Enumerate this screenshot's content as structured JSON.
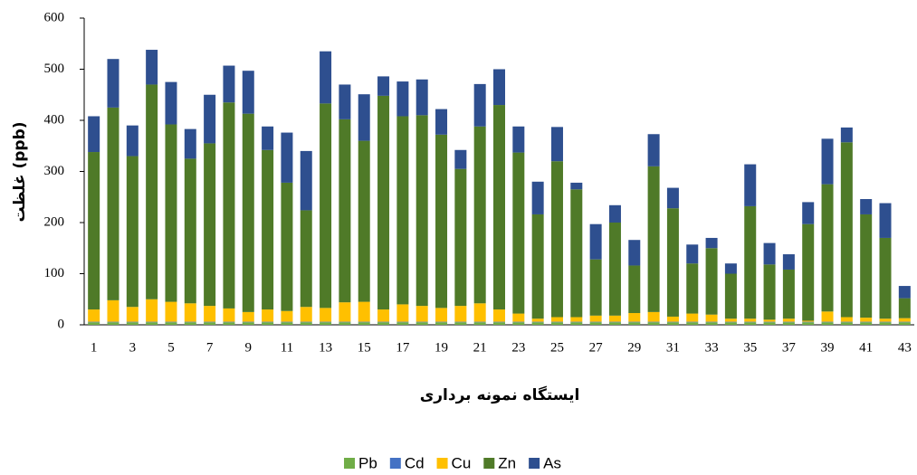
{
  "chart_data": {
    "type": "stacked-bar",
    "y_label": "غلظت (ppb)",
    "x_label": "ایستگاه نمونه برداری",
    "categories": [
      "1",
      null,
      "3",
      null,
      "5",
      null,
      "7",
      null,
      "9",
      null,
      "11",
      null,
      "13",
      null,
      "15",
      null,
      "17",
      null,
      "19",
      null,
      "21",
      null,
      "23",
      null,
      "25",
      null,
      "27",
      null,
      "29",
      null,
      "31",
      null,
      "33",
      null,
      "35",
      null,
      "37",
      null,
      "39",
      null,
      "41",
      null,
      "43"
    ],
    "ylim": [
      0,
      600
    ],
    "yticks": [
      0,
      100,
      200,
      300,
      400,
      500,
      600
    ],
    "series": [
      {
        "name": "Pb",
        "color": "#70ad47",
        "values": [
          5,
          5,
          5,
          5,
          5,
          5,
          5,
          5,
          5,
          5,
          5,
          5,
          5,
          5,
          5,
          5,
          5,
          5,
          5,
          5,
          5,
          5,
          5,
          5,
          5,
          5,
          5,
          5,
          5,
          5,
          5,
          5,
          5,
          5,
          5,
          5,
          5,
          5,
          5,
          5,
          5,
          5,
          5
        ]
      },
      {
        "name": "Cd",
        "color": "#4472c4",
        "values": [
          1,
          1,
          1,
          1,
          1,
          1,
          1,
          1,
          1,
          1,
          1,
          1,
          1,
          1,
          1,
          1,
          1,
          1,
          1,
          1,
          1,
          1,
          1,
          1,
          1,
          1,
          1,
          1,
          1,
          1,
          1,
          1,
          1,
          1,
          1,
          1,
          1,
          1,
          1,
          1,
          1,
          1,
          1
        ]
      },
      {
        "name": "Cu",
        "color": "#ffc000",
        "values": [
          24,
          42,
          29,
          44,
          39,
          36,
          31,
          26,
          19,
          24,
          21,
          29,
          27,
          38,
          39,
          24,
          34,
          31,
          27,
          31,
          36,
          24,
          16,
          6,
          9,
          9,
          12,
          12,
          17,
          19,
          10,
          16,
          14,
          6,
          6,
          4,
          6,
          2,
          20,
          9,
          8,
          6,
          7
        ]
      },
      {
        "name": "Zn",
        "color": "#4f7a28",
        "values": [
          308,
          377,
          295,
          420,
          347,
          283,
          318,
          403,
          388,
          312,
          251,
          189,
          400,
          358,
          315,
          418,
          368,
          373,
          339,
          268,
          346,
          400,
          315,
          204,
          305,
          250,
          110,
          182,
          93,
          285,
          212,
          98,
          130,
          88,
          220,
          108,
          96,
          189,
          249,
          342,
          202,
          158,
          39
        ]
      },
      {
        "name": "As",
        "color": "#2e4f8f",
        "values": [
          70,
          95,
          60,
          68,
          83,
          58,
          95,
          72,
          84,
          46,
          98,
          116,
          102,
          68,
          91,
          38,
          68,
          70,
          50,
          37,
          83,
          70,
          51,
          64,
          67,
          13,
          69,
          34,
          50,
          63,
          40,
          37,
          20,
          20,
          82,
          42,
          30,
          43,
          89,
          29,
          30,
          68,
          24
        ]
      }
    ]
  }
}
